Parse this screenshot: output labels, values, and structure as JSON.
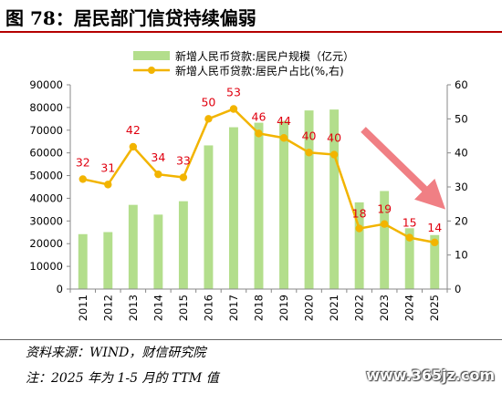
{
  "figure": {
    "title": "图 78：居民部门信贷持续偏弱",
    "source": "资料来源：WIND，财信研究院",
    "note": "注：2025 年为 1-5 月的 TTM 值",
    "watermark": "www.365jz.com"
  },
  "colors": {
    "bar": "#b3de8c",
    "line": "#f2b400",
    "label": "#e0000f",
    "arrow": "#f07f84",
    "axis": "#000000",
    "title_rule": "#b40000"
  },
  "chart_data": {
    "type": "bar",
    "categories": [
      "2011",
      "2012",
      "2013",
      "2014",
      "2015",
      "2016",
      "2017",
      "2018",
      "2019",
      "2020",
      "2021",
      "2022",
      "2023",
      "2024",
      "2025"
    ],
    "series": [
      {
        "name": "新增人民币贷款:居民户规模（亿元）",
        "type": "bar",
        "axis": "left",
        "values": [
          24200,
          25100,
          37100,
          32800,
          38700,
          63300,
          71300,
          73300,
          74100,
          78700,
          79100,
          38200,
          43200,
          26800,
          23800
        ]
      },
      {
        "name": "新增人民币贷款:居民户占比(%,右)",
        "type": "line",
        "axis": "right",
        "values": [
          32.3,
          30.7,
          41.8,
          33.7,
          32.8,
          50.0,
          52.9,
          45.7,
          44.4,
          40.1,
          39.5,
          17.8,
          19.1,
          15.1,
          13.7
        ],
        "data_labels": [
          "32",
          "31",
          "42",
          "34",
          "33",
          "50",
          "53",
          "46",
          "44",
          "40",
          "40",
          "18",
          "19",
          "15",
          "14"
        ]
      }
    ],
    "y_left": {
      "min": 0,
      "max": 90000,
      "ticks": [
        0,
        10000,
        20000,
        30000,
        40000,
        50000,
        60000,
        70000,
        80000,
        90000
      ]
    },
    "y_right": {
      "min": 0,
      "max": 60,
      "ticks": [
        0,
        10,
        20,
        30,
        40,
        50,
        60
      ]
    },
    "legend_position": "top",
    "grid": false,
    "annotation": "downward trend arrow over 2021–2025"
  }
}
